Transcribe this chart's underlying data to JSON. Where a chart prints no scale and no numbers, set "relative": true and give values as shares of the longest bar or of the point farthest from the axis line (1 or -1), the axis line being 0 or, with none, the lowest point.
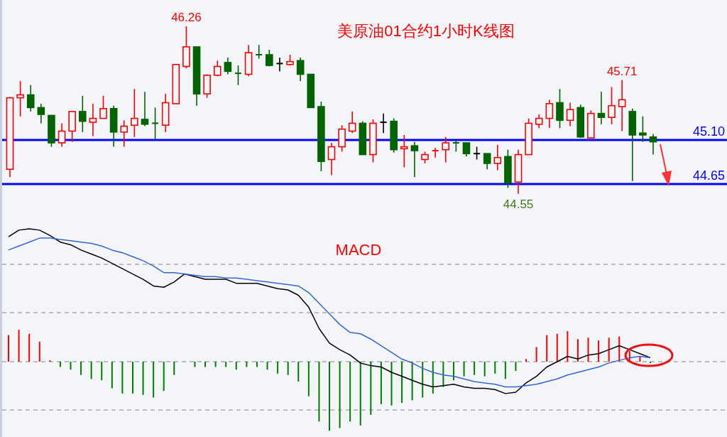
{
  "chart_data": [
    {
      "type": "candlestick",
      "title": "美原油01合约1小时K线图",
      "categories": [
        null,
        null,
        null,
        null,
        null,
        null,
        null,
        null,
        null,
        null,
        null,
        null,
        null,
        null,
        null,
        null,
        null,
        null,
        null,
        null,
        null,
        null,
        null,
        null,
        null,
        null,
        null,
        null,
        null,
        null,
        null,
        null,
        null,
        null,
        null,
        null,
        null,
        null,
        null,
        null,
        null,
        null,
        null,
        null,
        null,
        null,
        null,
        null,
        null,
        null,
        null,
        null,
        null,
        null,
        null,
        null,
        null,
        null,
        null,
        null,
        null,
        null,
        null
      ],
      "ohlc": [
        [
          44.8,
          45.54,
          44.72,
          45.53
        ],
        [
          45.53,
          45.7,
          45.34,
          45.56
        ],
        [
          45.56,
          45.66,
          45.39,
          45.43
        ],
        [
          45.43,
          45.47,
          45.27,
          45.36
        ],
        [
          45.35,
          45.35,
          45.03,
          45.07
        ],
        [
          45.07,
          45.27,
          45.03,
          45.19
        ],
        [
          45.19,
          45.39,
          45.08,
          45.39
        ],
        [
          45.39,
          45.55,
          45.18,
          45.29
        ],
        [
          45.28,
          45.47,
          45.14,
          45.32
        ],
        [
          45.32,
          45.55,
          45.32,
          45.42
        ],
        [
          45.42,
          45.45,
          45.03,
          45.18
        ],
        [
          45.18,
          45.3,
          45.03,
          45.24
        ],
        [
          45.25,
          45.62,
          45.13,
          45.32
        ],
        [
          45.31,
          45.59,
          45.24,
          45.26
        ],
        [
          45.27,
          45.43,
          45.11,
          45.26
        ],
        [
          45.25,
          45.57,
          45.18,
          45.48
        ],
        [
          45.47,
          45.87,
          45.47,
          45.87
        ],
        [
          45.85,
          46.26,
          45.83,
          46.05
        ],
        [
          46.05,
          46.05,
          45.45,
          45.57
        ],
        [
          45.57,
          45.77,
          45.53,
          45.76
        ],
        [
          45.76,
          45.91,
          45.75,
          45.85
        ],
        [
          45.89,
          45.94,
          45.77,
          45.8
        ],
        [
          45.78,
          45.86,
          45.66,
          45.77
        ],
        [
          45.77,
          46.07,
          45.75,
          45.99
        ],
        [
          45.97,
          46.07,
          45.93,
          45.96
        ],
        [
          45.97,
          46.02,
          45.85,
          45.86
        ],
        [
          45.88,
          45.94,
          45.8,
          45.88
        ],
        [
          45.87,
          45.97,
          45.86,
          45.9
        ],
        [
          45.91,
          45.94,
          45.7,
          45.77
        ],
        [
          45.77,
          45.77,
          45.43,
          45.43
        ],
        [
          45.44,
          45.49,
          44.78,
          44.88
        ],
        [
          44.9,
          45.07,
          44.74,
          45.03
        ],
        [
          45.03,
          45.25,
          44.98,
          45.21
        ],
        [
          45.19,
          45.39,
          45.17,
          45.27
        ],
        [
          45.27,
          45.29,
          44.95,
          44.95
        ],
        [
          44.95,
          45.31,
          44.87,
          45.27
        ],
        [
          45.28,
          45.37,
          45.17,
          45.28
        ],
        [
          45.29,
          45.32,
          44.97,
          45.0
        ],
        [
          45.01,
          45.15,
          44.82,
          45.03
        ],
        [
          45.04,
          45.08,
          44.72,
          44.99
        ],
        [
          44.9,
          44.98,
          44.86,
          44.95
        ],
        [
          44.98,
          45.02,
          44.92,
          44.99
        ],
        [
          45.0,
          45.13,
          44.87,
          45.07
        ],
        [
          45.07,
          45.09,
          44.98,
          45.06
        ],
        [
          45.07,
          45.07,
          44.93,
          44.96
        ],
        [
          44.96,
          45.03,
          44.9,
          44.96
        ],
        [
          44.96,
          44.96,
          44.8,
          44.86
        ],
        [
          44.86,
          45.05,
          44.79,
          44.92
        ],
        [
          44.93,
          45.0,
          44.61,
          44.66
        ],
        [
          44.67,
          45.0,
          44.55,
          44.95
        ],
        [
          44.95,
          45.32,
          44.95,
          45.27
        ],
        [
          45.26,
          45.36,
          45.22,
          45.32
        ],
        [
          45.32,
          45.51,
          45.22,
          45.47
        ],
        [
          45.48,
          45.62,
          45.22,
          45.3
        ],
        [
          45.3,
          45.48,
          45.24,
          45.41
        ],
        [
          45.43,
          45.46,
          45.12,
          45.13
        ],
        [
          45.12,
          45.4,
          45.12,
          45.37
        ],
        [
          45.37,
          45.59,
          45.26,
          45.33
        ],
        [
          45.33,
          45.64,
          45.26,
          45.45
        ],
        [
          45.44,
          45.71,
          45.19,
          45.51
        ],
        [
          45.39,
          45.42,
          44.68,
          45.15
        ],
        [
          45.17,
          45.34,
          45.08,
          45.15
        ],
        [
          45.13,
          45.16,
          44.95,
          45.08
        ]
      ],
      "colors": [
        "#ff0000",
        "#ff0000",
        "#006400",
        "#006400",
        "#006400",
        "#ff0000",
        "#ff0000",
        "#006400",
        "#ff0000",
        "#ff0000",
        "#006400",
        "#ff0000",
        "#ff0000",
        "#006400",
        "#006400",
        "#ff0000",
        "#ff0000",
        "#ff0000",
        "#006400",
        "#ff0000",
        "#ff0000",
        "#006400",
        "#006400",
        "#ff0000",
        "#006400",
        "#006400",
        "#000000",
        "#ff0000",
        "#006400",
        "#006400",
        "#006400",
        "#ff0000",
        "#ff0000",
        "#ff0000",
        "#006400",
        "#ff0000",
        "#000000",
        "#006400",
        "#ff0000",
        "#006400",
        "#ff0000",
        "#ff0000",
        "#ff0000",
        "#006400",
        "#006400",
        "#000000",
        "#006400",
        "#ff0000",
        "#006400",
        "#ff0000",
        "#ff0000",
        "#ff0000",
        "#ff0000",
        "#006400",
        "#ff0000",
        "#006400",
        "#ff0000",
        "#006400",
        "#ff0000",
        "#ff0000",
        "#006400",
        "#006400",
        "#006400"
      ],
      "ref_lines": [
        {
          "axis": "y",
          "value": 45.1,
          "label": "45.10",
          "color": "#0000ff"
        },
        {
          "axis": "y",
          "value": 44.65,
          "label": "44.65",
          "color": "#0000ff"
        }
      ],
      "annotations": [
        {
          "text": "46.26",
          "y": 46.26
        },
        {
          "text": "45.71",
          "y": 45.71
        },
        {
          "text": "44.55",
          "y": 44.55
        }
      ]
    },
    {
      "type": "bar",
      "title": "MACD",
      "relative": true,
      "grid": true,
      "categories": [
        null,
        null,
        null,
        null,
        null,
        null,
        null,
        null,
        null,
        null,
        null,
        null,
        null,
        null,
        null,
        null,
        null,
        null,
        null,
        null,
        null,
        null,
        null,
        null,
        null,
        null,
        null,
        null,
        null,
        null,
        null,
        null,
        null,
        null,
        null,
        null,
        null,
        null,
        null,
        null,
        null,
        null,
        null,
        null,
        null,
        null,
        null,
        null,
        null,
        null,
        null,
        null,
        null,
        null,
        null,
        null,
        null,
        null,
        null,
        null,
        null,
        null,
        null
      ],
      "series": [
        {
          "type": "bar",
          "values": [
            0.2,
            0.24,
            0.21,
            0.15,
            0.01,
            -0.04,
            -0.06,
            -0.1,
            -0.13,
            -0.14,
            -0.2,
            -0.24,
            -0.24,
            -0.25,
            -0.27,
            -0.22,
            -0.1,
            0,
            -0.04,
            -0.04,
            -0.04,
            -0.04,
            -0.06,
            -0.04,
            -0.04,
            -0.06,
            -0.09,
            -0.1,
            -0.15,
            -0.26,
            -0.45,
            -0.52,
            -0.5,
            -0.45,
            -0.48,
            -0.4,
            -0.32,
            -0.33,
            -0.31,
            -0.29,
            -0.27,
            -0.24,
            -0.19,
            -0.14,
            -0.11,
            -0.1,
            -0.11,
            -0.09,
            -0.13,
            -0.07,
            0.02,
            0.11,
            0.2,
            0.21,
            0.23,
            0.17,
            0.18,
            0.16,
            0.18,
            0.19,
            0.08,
            0.04,
            -0.01
          ],
          "colors": [
            "#ff0000",
            "#ff0000",
            "#ff0000",
            "#ff0000",
            "#ff0000",
            "#008000",
            "#008000",
            "#008000",
            "#008000",
            "#008000",
            "#008000",
            "#008000",
            "#008000",
            "#008000",
            "#008000",
            "#008000",
            "#008000",
            "#008000",
            "#008000",
            "#008000",
            "#008000",
            "#008000",
            "#008000",
            "#008000",
            "#008000",
            "#008000",
            "#008000",
            "#008000",
            "#008000",
            "#008000",
            "#008000",
            "#008000",
            "#008000",
            "#008000",
            "#008000",
            "#008000",
            "#008000",
            "#008000",
            "#008000",
            "#008000",
            "#008000",
            "#008000",
            "#008000",
            "#008000",
            "#008000",
            "#008000",
            "#008000",
            "#008000",
            "#008000",
            "#008000",
            "#ff0000",
            "#ff0000",
            "#ff0000",
            "#ff0000",
            "#ff0000",
            "#ff0000",
            "#ff0000",
            "#ff0000",
            "#ff0000",
            "#ff0000",
            "#ff0000",
            "#ff0000",
            "#008000"
          ]
        },
        {
          "type": "line",
          "color": "#000000",
          "values": [
            0.94,
            0.99,
            1.0,
            0.99,
            0.95,
            0.9,
            0.88,
            0.84,
            0.81,
            0.78,
            0.74,
            0.7,
            0.66,
            0.62,
            0.57,
            0.56,
            0.6,
            0.66,
            0.64,
            0.62,
            0.62,
            0.62,
            0.59,
            0.59,
            0.59,
            0.57,
            0.55,
            0.54,
            0.5,
            0.41,
            0.25,
            0.14,
            0.09,
            0.05,
            -0.01,
            -0.03,
            -0.04,
            -0.08,
            -0.11,
            -0.14,
            -0.17,
            -0.19,
            -0.18,
            -0.17,
            -0.19,
            -0.2,
            -0.2,
            -0.21,
            -0.24,
            -0.23,
            -0.16,
            -0.11,
            -0.04,
            0,
            0.04,
            0.02,
            0.05,
            0.06,
            0.09,
            0.12,
            0.09,
            0.06,
            0.03
          ]
        },
        {
          "type": "line",
          "color": "#3366dd",
          "values": [
            0.84,
            0.87,
            0.9,
            0.93,
            0.93,
            0.92,
            0.91,
            0.9,
            0.89,
            0.87,
            0.84,
            0.82,
            0.79,
            0.76,
            0.72,
            0.67,
            0.67,
            0.66,
            0.65,
            0.64,
            0.64,
            0.63,
            0.63,
            0.62,
            0.61,
            0.6,
            0.59,
            0.58,
            0.57,
            0.52,
            0.44,
            0.36,
            0.28,
            0.22,
            0.21,
            0.17,
            0.12,
            0.07,
            0.02,
            -0.01,
            -0.05,
            -0.08,
            -0.1,
            -0.11,
            -0.13,
            -0.15,
            -0.16,
            -0.17,
            -0.19,
            -0.19,
            -0.18,
            -0.17,
            -0.15,
            -0.13,
            -0.1,
            -0.08,
            -0.06,
            -0.04,
            -0.01,
            0.01,
            0.03,
            0.04,
            0.03
          ]
        }
      ]
    }
  ]
}
